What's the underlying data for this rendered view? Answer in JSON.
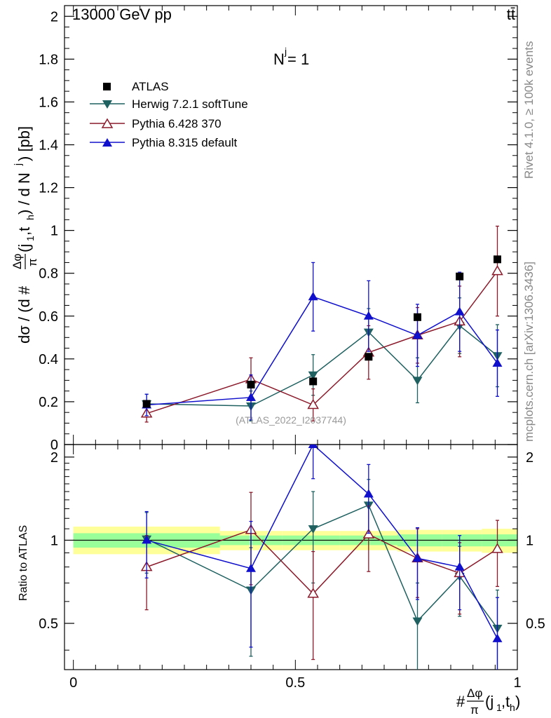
{
  "chart_data": [
    {
      "type": "scatter",
      "panel": "main",
      "title_left": "13000 GeV pp",
      "title_right": "tt̄",
      "annotation": "N",
      "annotation_sup": "j",
      "annotation_rest": " = 1",
      "watermark": "(ATLAS_2022_I2037744)",
      "ylabel_parts": [
        "dσ / (d #",
        "Δφ",
        "π",
        "(j",
        "1",
        ",t",
        "h",
        ") / d N",
        "j",
        ") [pb]"
      ],
      "ylim": [
        0,
        2.05
      ],
      "yticks": [
        0,
        0.2,
        0.4,
        0.6,
        0.8,
        1,
        1.2,
        1.4,
        1.6,
        1.8,
        2
      ],
      "ytick_labels": [
        "0",
        "0.2",
        "0.4",
        "0.6",
        "0.8",
        "1",
        "1.2",
        "1.4",
        "1.6",
        "1.8",
        "2"
      ],
      "series": [
        {
          "name": "ATLAS",
          "color": "#000000",
          "marker": "square",
          "line": false,
          "x": [
            0.165,
            0.4,
            0.54,
            0.665,
            0.775,
            0.87,
            0.955
          ],
          "y": [
            0.19,
            0.28,
            0.295,
            0.41,
            0.595,
            0.785,
            0.865
          ],
          "yerr": [
            0.0,
            0.0,
            0.0,
            0.0,
            0.0,
            0.0,
            0.0
          ]
        },
        {
          "name": "Herwig 7.2.1 softTune",
          "color": "#1f6060",
          "marker": "tri-down",
          "line": true,
          "x": [
            0.165,
            0.4,
            0.54,
            0.665,
            0.775,
            0.87,
            0.955
          ],
          "y": [
            0.19,
            0.18,
            0.325,
            0.525,
            0.3,
            0.555,
            0.415
          ],
          "yerr": [
            0.045,
            0.07,
            0.095,
            0.11,
            0.105,
            0.13,
            0.145
          ]
        },
        {
          "name": "Pythia 6.428 370",
          "color": "#8b1a2b",
          "marker": "tri-up-open",
          "line": true,
          "x": [
            0.165,
            0.4,
            0.54,
            0.665,
            0.775,
            0.87,
            0.955
          ],
          "y": [
            0.145,
            0.305,
            0.185,
            0.43,
            0.51,
            0.575,
            0.81
          ],
          "yerr": [
            0.04,
            0.1,
            0.075,
            0.125,
            0.13,
            0.165,
            0.21
          ]
        },
        {
          "name": "Pythia 8.315 default",
          "color": "#1010cc",
          "marker": "tri-up",
          "line": true,
          "x": [
            0.165,
            0.4,
            0.54,
            0.665,
            0.775,
            0.87,
            0.955
          ],
          "y": [
            0.185,
            0.22,
            0.69,
            0.6,
            0.51,
            0.62,
            0.38
          ],
          "yerr": [
            0.05,
            0.105,
            0.16,
            0.165,
            0.145,
            0.185,
            0.155
          ]
        }
      ]
    },
    {
      "type": "scatter",
      "panel": "ratio",
      "ylabel": "Ratio to ATLAS",
      "xlabel_parts": [
        "#",
        "Δφ",
        "π",
        "(j",
        "1",
        ",t",
        "h",
        ")"
      ],
      "ylim": [
        0.34,
        2.22
      ],
      "yticks": [
        0.5,
        1,
        2
      ],
      "ytick_labels": [
        "0.5",
        "1",
        "2"
      ],
      "xlim": [
        -0.02,
        1.0
      ],
      "xticks": [
        0,
        0.5,
        1
      ],
      "xtick_labels": [
        "0",
        "0.5",
        "1"
      ],
      "bands": [
        {
          "x0": 0.0,
          "x1": 0.33,
          "yellow": [
            0.89,
            1.12
          ],
          "green": [
            0.94,
            1.06
          ]
        },
        {
          "x0": 0.33,
          "x1": 0.47,
          "yellow": [
            0.92,
            1.08
          ],
          "green": [
            0.96,
            1.04
          ]
        },
        {
          "x0": 0.47,
          "x1": 0.6,
          "yellow": [
            0.92,
            1.08
          ],
          "green": [
            0.96,
            1.04
          ]
        },
        {
          "x0": 0.6,
          "x1": 0.73,
          "yellow": [
            0.92,
            1.08
          ],
          "green": [
            0.96,
            1.04
          ]
        },
        {
          "x0": 0.73,
          "x1": 0.83,
          "yellow": [
            0.91,
            1.09
          ],
          "green": [
            0.95,
            1.05
          ]
        },
        {
          "x0": 0.83,
          "x1": 0.92,
          "yellow": [
            0.91,
            1.09
          ],
          "green": [
            0.95,
            1.05
          ]
        },
        {
          "x0": 0.92,
          "x1": 1.0,
          "yellow": [
            0.9,
            1.1
          ],
          "green": [
            0.95,
            1.05
          ]
        }
      ],
      "series": [
        {
          "name": "Herwig 7.2.1 softTune",
          "color": "#1f6060",
          "marker": "tri-down",
          "line": true,
          "x": [
            0.165,
            0.4,
            0.54,
            0.665,
            0.775,
            0.87,
            0.955
          ],
          "y": [
            1.01,
            0.66,
            1.1,
            1.34,
            0.51,
            0.74,
            0.48
          ],
          "yerr": [
            0.25,
            0.28,
            0.4,
            0.32,
            0.19,
            0.21,
            0.18
          ]
        },
        {
          "name": "Pythia 6.428 370",
          "color": "#8b1a2b",
          "marker": "tri-up-open",
          "line": true,
          "x": [
            0.165,
            0.4,
            0.54,
            0.665,
            0.775,
            0.87,
            0.955
          ],
          "y": [
            0.8,
            1.09,
            0.64,
            1.05,
            0.86,
            0.76,
            0.93
          ],
          "yerr": [
            0.24,
            0.4,
            0.27,
            0.28,
            0.24,
            0.22,
            0.25
          ]
        },
        {
          "name": "Pythia 8.315 default",
          "color": "#1010cc",
          "marker": "tri-up",
          "line": true,
          "x": [
            0.165,
            0.4,
            0.54,
            0.665,
            0.775,
            0.87,
            0.955
          ],
          "y": [
            1.0,
            0.79,
            2.22,
            1.47,
            0.86,
            0.8,
            0.44
          ],
          "yerr": [
            0.27,
            0.38,
            0.55,
            0.41,
            0.25,
            0.24,
            0.18
          ]
        }
      ]
    }
  ],
  "side_texts": {
    "rivet": "Rivet 4.1.0, ≥ 100k events",
    "mcplots": "mcplots.cern.ch [arXiv:1306.3436]"
  }
}
